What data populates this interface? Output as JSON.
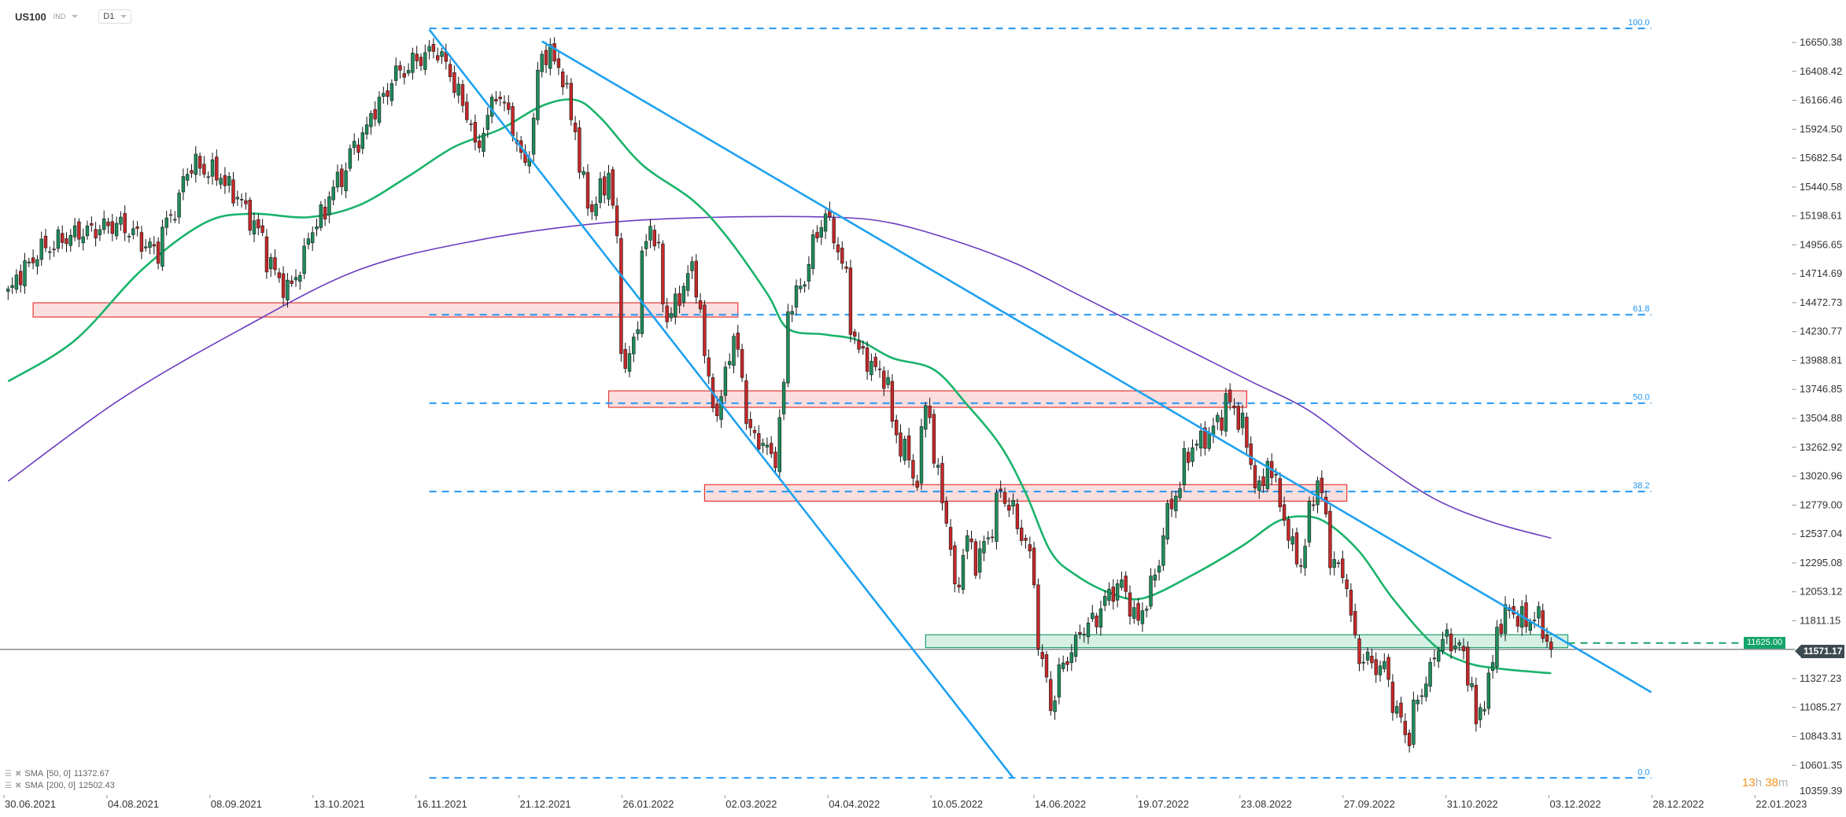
{
  "header": {
    "symbol": "US100",
    "instrument_type": "IND",
    "timeframe": "D1"
  },
  "legend": [
    {
      "name": "SMA",
      "params": "[50,  0]",
      "value": "11372.67"
    },
    {
      "name": "SMA",
      "params": "[200,  0]",
      "value": "12502.43"
    }
  ],
  "timer": {
    "hours": "13",
    "h": "h",
    "minutes": "38",
    "m": "m"
  },
  "colors": {
    "up_candle": "#1e8c5a",
    "down_candle": "#c62828",
    "trendline": "#1ea1f1",
    "sma50": "#19b36b",
    "sma200": "#6a3dbf",
    "fibonacci": "#2196f3",
    "resistance_zone": "#e53935",
    "support_zone": "#1aa06a",
    "last_price_bg": "#3d4a52"
  },
  "chart_data": {
    "type": "candlestick",
    "symbol": "US100",
    "timeframe": "D1",
    "last_price": 11571.17,
    "last_price_label": "11571.17",
    "price_axis_labels": [
      "16650.38",
      "16408.42",
      "16166.46",
      "15924.50",
      "15682.54",
      "15440.58",
      "15198.61",
      "14956.65",
      "14714.69",
      "14472.73",
      "14230.77",
      "13988.81",
      "13746.85",
      "13504.88",
      "13262.92",
      "13020.96",
      "12779.00",
      "12537.04",
      "12295.08",
      "12053.12",
      "11811.15",
      "11327.23",
      "11085.27",
      "10843.31",
      "10601.35",
      "10359.39"
    ],
    "date_axis_labels": [
      "30.06.2021",
      "04.08.2021",
      "08.09.2021",
      "13.10.2021",
      "16.11.2021",
      "21.12.2021",
      "26.01.2022",
      "02.03.2022",
      "04.04.2022",
      "10.05.2022",
      "14.06.2022",
      "19.07.2022",
      "23.08.2022",
      "27.09.2022",
      "31.10.2022",
      "03.12.2022",
      "28.12.2022",
      "22.01.2023"
    ],
    "price_swings": [
      [
        "2021-07-01",
        14550
      ],
      [
        "2021-07-11",
        14893
      ],
      [
        "2021-07-23",
        15040
      ],
      [
        "2021-08-08",
        15138
      ],
      [
        "2021-08-20",
        14893
      ],
      [
        "2021-09-01",
        15629
      ],
      [
        "2021-09-11",
        15531
      ],
      [
        "2021-09-21",
        15188
      ],
      [
        "2021-10-03",
        14500
      ],
      [
        "2021-10-11",
        15040
      ],
      [
        "2021-10-27",
        15826
      ],
      [
        "2021-11-08",
        16365
      ],
      [
        "2021-11-22",
        16611
      ],
      [
        "2021-11-30",
        16218
      ],
      [
        "2021-12-06",
        15727
      ],
      [
        "2021-12-12",
        16316
      ],
      [
        "2021-12-22",
        15629
      ],
      [
        "2021-12-28",
        16562
      ],
      [
        "2022-01-03",
        16464
      ],
      [
        "2022-01-07",
        15924
      ],
      [
        "2022-01-13",
        15237
      ],
      [
        "2022-01-19",
        15531
      ],
      [
        "2022-01-23",
        14452
      ],
      [
        "2022-01-25",
        13863
      ],
      [
        "2022-02-02",
        15138
      ],
      [
        "2022-02-08",
        14353
      ],
      [
        "2022-02-16",
        14746
      ],
      [
        "2022-02-24",
        13519
      ],
      [
        "2022-03-02",
        14157
      ],
      [
        "2022-03-08",
        13372
      ],
      [
        "2022-03-16",
        13176
      ],
      [
        "2022-03-20",
        14353
      ],
      [
        "2022-03-28",
        14844
      ],
      [
        "2022-04-01",
        15237
      ],
      [
        "2022-04-05",
        15040
      ],
      [
        "2022-04-09",
        14550
      ],
      [
        "2022-04-13",
        14059
      ],
      [
        "2022-04-21",
        13863
      ],
      [
        "2022-04-27",
        13274
      ],
      [
        "2022-05-03",
        12979
      ],
      [
        "2022-05-05",
        13666
      ],
      [
        "2022-05-11",
        12881
      ],
      [
        "2022-05-15",
        11900
      ],
      [
        "2022-05-19",
        12488
      ],
      [
        "2022-05-23",
        12292
      ],
      [
        "2022-05-31",
        12881
      ],
      [
        "2022-06-08",
        12488
      ],
      [
        "2022-06-16",
        11114
      ],
      [
        "2022-06-22",
        11507
      ],
      [
        "2022-06-26",
        11703
      ],
      [
        "2022-07-02",
        11850
      ],
      [
        "2022-07-10",
        12194
      ],
      [
        "2022-07-16",
        11703
      ],
      [
        "2022-07-22",
        12292
      ],
      [
        "2022-07-28",
        12881
      ],
      [
        "2022-08-03",
        13274
      ],
      [
        "2022-08-09",
        13372
      ],
      [
        "2022-08-15",
        13666
      ],
      [
        "2022-08-21",
        13372
      ],
      [
        "2022-08-25",
        12881
      ],
      [
        "2022-08-29",
        13176
      ],
      [
        "2022-09-02",
        12685
      ],
      [
        "2022-09-08",
        12292
      ],
      [
        "2022-09-14",
        12979
      ],
      [
        "2022-09-18",
        12390
      ],
      [
        "2022-09-24",
        12096
      ],
      [
        "2022-09-28",
        11507
      ],
      [
        "2022-10-06",
        11409
      ],
      [
        "2022-10-14",
        10820
      ],
      [
        "2022-10-20",
        11311
      ],
      [
        "2022-10-26",
        11654
      ],
      [
        "2022-11-01",
        11605
      ],
      [
        "2022-11-07",
        10918
      ],
      [
        "2022-11-13",
        11703
      ],
      [
        "2022-11-17",
        11900
      ],
      [
        "2022-11-23",
        11801
      ],
      [
        "2022-11-27",
        11900
      ],
      [
        "2022-12-01",
        11571.17
      ]
    ],
    "sma50": {
      "label": "SMA [50, 0]",
      "last_value": 11372.67,
      "points": [
        [
          "2021-07-01",
          13814
        ],
        [
          "2021-07-23",
          14157
        ],
        [
          "2021-08-16",
          14746
        ],
        [
          "2021-09-05",
          15138
        ],
        [
          "2021-09-21",
          15217
        ],
        [
          "2021-10-11",
          15188
        ],
        [
          "2021-10-27",
          15286
        ],
        [
          "2021-11-12",
          15531
        ],
        [
          "2021-11-28",
          15777
        ],
        [
          "2021-12-14",
          15924
        ],
        [
          "2021-12-28",
          16120
        ],
        [
          "2022-01-07",
          16169
        ],
        [
          "2022-01-15",
          16022
        ],
        [
          "2022-01-31",
          15629
        ],
        [
          "2022-02-16",
          15335
        ],
        [
          "2022-02-28",
          15040
        ],
        [
          "2022-03-12",
          14550
        ],
        [
          "2022-03-20",
          14255
        ],
        [
          "2022-04-01",
          14206
        ],
        [
          "2022-04-13",
          14157
        ],
        [
          "2022-04-25",
          14010
        ],
        [
          "2022-05-07",
          13912
        ],
        [
          "2022-05-19",
          13617
        ],
        [
          "2022-05-31",
          13274
        ],
        [
          "2022-06-08",
          12881
        ],
        [
          "2022-06-16",
          12390
        ],
        [
          "2022-06-24",
          12194
        ],
        [
          "2022-07-06",
          12047
        ],
        [
          "2022-07-18",
          11998
        ],
        [
          "2022-08-03",
          12194
        ],
        [
          "2022-08-19",
          12439
        ],
        [
          "2022-08-31",
          12635
        ],
        [
          "2022-09-08",
          12685
        ],
        [
          "2022-09-16",
          12635
        ],
        [
          "2022-09-28",
          12390
        ],
        [
          "2022-10-10",
          11998
        ],
        [
          "2022-10-22",
          11605
        ],
        [
          "2022-11-03",
          11458
        ],
        [
          "2022-11-15",
          11409
        ],
        [
          "2022-11-27",
          11380
        ],
        [
          "2022-12-01",
          11372.67
        ]
      ]
    },
    "sma200": {
      "label": "SMA [200, 0]",
      "last_value": 12502.43,
      "points": [
        [
          "2021-07-01",
          12979
        ],
        [
          "2021-08-08",
          13666
        ],
        [
          "2021-09-17",
          14255
        ],
        [
          "2021-10-27",
          14746
        ],
        [
          "2021-12-06",
          14991
        ],
        [
          "2022-01-15",
          15138
        ],
        [
          "2022-02-24",
          15188
        ],
        [
          "2022-04-05",
          15188
        ],
        [
          "2022-04-25",
          15138
        ],
        [
          "2022-05-15",
          14991
        ],
        [
          "2022-06-04",
          14795
        ],
        [
          "2022-06-24",
          14550
        ],
        [
          "2022-07-14",
          14304
        ],
        [
          "2022-08-03",
          14059
        ],
        [
          "2022-08-23",
          13814
        ],
        [
          "2022-09-12",
          13568
        ],
        [
          "2022-10-02",
          13176
        ],
        [
          "2022-10-22",
          12832
        ],
        [
          "2022-11-11",
          12635
        ],
        [
          "2022-12-01",
          12502.43
        ]
      ]
    },
    "fibonacci": {
      "high": 16768,
      "low": 10496,
      "start": "2021-11-19",
      "end": "2023-01-04",
      "levels": [
        {
          "level": 100.0,
          "label": "100.0"
        },
        {
          "level": 61.8,
          "label": "61.8"
        },
        {
          "level": 50.0,
          "label": "50.0"
        },
        {
          "level": 38.2,
          "label": "38.2"
        },
        {
          "level": 0.0,
          "label": "0.0"
        }
      ]
    },
    "trendlines": [
      {
        "from": [
          "2021-11-19",
          16758
        ],
        "to": [
          "2022-06-03",
          10496
        ]
      },
      {
        "from": [
          "2021-12-28",
          16660
        ],
        "to": [
          "2023-01-04",
          11213
        ]
      }
    ],
    "zones": [
      {
        "kind": "resistance",
        "from": "2021-07-09",
        "to": "2022-03-03",
        "low": 14353,
        "high": 14472
      },
      {
        "kind": "resistance",
        "from": "2022-01-19",
        "to": "2022-08-22",
        "low": 13597,
        "high": 13735
      },
      {
        "kind": "resistance",
        "from": "2022-02-21",
        "to": "2022-09-23",
        "low": 12812,
        "high": 12950
      },
      {
        "kind": "support",
        "from": "2022-05-05",
        "to": "2022-12-07",
        "low": 11586,
        "high": 11694
      }
    ],
    "horizontal_levels": [
      {
        "price": 11625.0,
        "label": "11625.00",
        "from": "2022-12-07"
      }
    ]
  }
}
